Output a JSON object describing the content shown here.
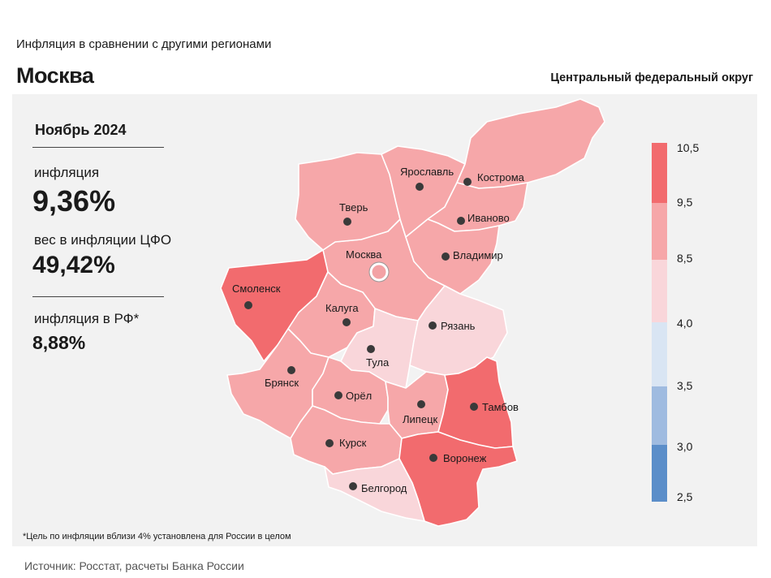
{
  "header": {
    "subtitle": "Инфляция  в сравнении  с другими  регионами",
    "title": "Москва",
    "district": "Центральный федеральный округ"
  },
  "stats": {
    "period": "Ноябрь 2024",
    "inflation_label": "инфляция",
    "inflation_value": "9,36%",
    "weight_label": "вес в инфляции  ЦФО",
    "weight_value": "49,42%",
    "rf_label": "инфляция  в РФ*",
    "rf_value": "8,88%"
  },
  "legend": {
    "ticks": [
      "10,5",
      "9,5",
      "8,5",
      "4,0",
      "3,5",
      "3,0",
      "2,5"
    ],
    "colors": [
      "#f26b6e",
      "#f6a7a9",
      "#f9d6da",
      "#d9e5f3",
      "#9fbbe0",
      "#5b8ec9"
    ]
  },
  "regions": [
    {
      "id": "moscow",
      "city": "Москва",
      "color": "#f6a7a9",
      "highlight": true
    },
    {
      "id": "tver",
      "city": "Тверь",
      "color": "#f6a7a9"
    },
    {
      "id": "yaroslavl",
      "city": "Ярославль",
      "color": "#f6a7a9"
    },
    {
      "id": "kostroma",
      "city": "Кострома",
      "color": "#f6a7a9"
    },
    {
      "id": "ivanovo",
      "city": "Иваново",
      "color": "#f6a7a9"
    },
    {
      "id": "vladimir",
      "city": "Владимир",
      "color": "#f6a7a9"
    },
    {
      "id": "smolensk",
      "city": "Смоленск",
      "color": "#f26b6e"
    },
    {
      "id": "kaluga",
      "city": "Калуга",
      "color": "#f6a7a9"
    },
    {
      "id": "tula",
      "city": "Тула",
      "color": "#f9d6da"
    },
    {
      "id": "ryazan",
      "city": "Рязань",
      "color": "#f9d6da"
    },
    {
      "id": "bryansk",
      "city": "Брянск",
      "color": "#f6a7a9"
    },
    {
      "id": "orel",
      "city": "Орёл",
      "color": "#f6a7a9"
    },
    {
      "id": "lipetsk",
      "city": "Липецк",
      "color": "#f6a7a9"
    },
    {
      "id": "tambov",
      "city": "Тамбов",
      "color": "#f26b6e"
    },
    {
      "id": "kursk",
      "city": "Курск",
      "color": "#f6a7a9"
    },
    {
      "id": "voronezh",
      "city": "Воронеж",
      "color": "#f26b6e"
    },
    {
      "id": "belgorod",
      "city": "Белгород",
      "color": "#f9d6da"
    }
  ],
  "footnote": "*Цель по инфляции вблизи 4% установлена для России в целом",
  "source": "Источник: Росстат, расчеты Банка России"
}
